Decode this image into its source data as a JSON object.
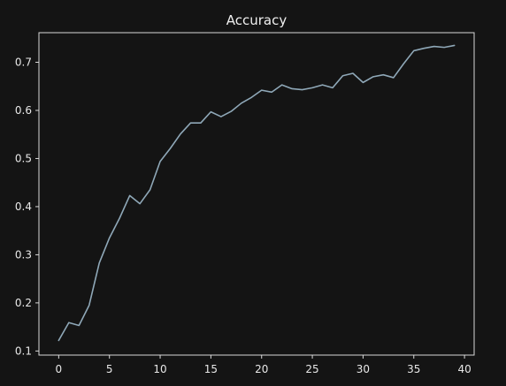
{
  "chart_data": {
    "type": "line",
    "title": "Accuracy",
    "xlabel": "",
    "ylabel": "",
    "xlim": [
      -1.95,
      40.95
    ],
    "ylim": [
      0.0915,
      0.7615
    ],
    "xticks": [
      0,
      5,
      10,
      15,
      20,
      25,
      30,
      35,
      40
    ],
    "yticks": [
      0.1,
      0.2,
      0.3,
      0.4,
      0.5,
      0.6,
      0.7
    ],
    "xtick_labels": [
      "0",
      "5",
      "10",
      "15",
      "20",
      "25",
      "30",
      "35",
      "40"
    ],
    "ytick_labels": [
      "0.1",
      "0.2",
      "0.3",
      "0.4",
      "0.5",
      "0.6",
      "0.7"
    ],
    "grid": false,
    "legend": "none",
    "colors": {
      "background": "#141414",
      "axes_frame": "#d9d9d9",
      "text": "#e8e8e8",
      "series": "#8fa8b8"
    },
    "series": [
      {
        "x": [
          0,
          1,
          2,
          3,
          4,
          5,
          6,
          7,
          8,
          9,
          10,
          11,
          12,
          13,
          14,
          15,
          16,
          17,
          18,
          19,
          20,
          21,
          22,
          23,
          24,
          25,
          26,
          27,
          28,
          29,
          30,
          31,
          32,
          33,
          34,
          35,
          36,
          37,
          38,
          39
        ],
        "values": [
          0.122,
          0.159,
          0.153,
          0.195,
          0.283,
          0.335,
          0.376,
          0.423,
          0.406,
          0.435,
          0.494,
          0.521,
          0.551,
          0.574,
          0.574,
          0.597,
          0.587,
          0.598,
          0.615,
          0.627,
          0.642,
          0.638,
          0.653,
          0.645,
          0.643,
          0.647,
          0.653,
          0.647,
          0.672,
          0.677,
          0.658,
          0.67,
          0.674,
          0.668,
          0.697,
          0.724,
          0.729,
          0.733,
          0.731,
          0.735
        ]
      }
    ]
  }
}
